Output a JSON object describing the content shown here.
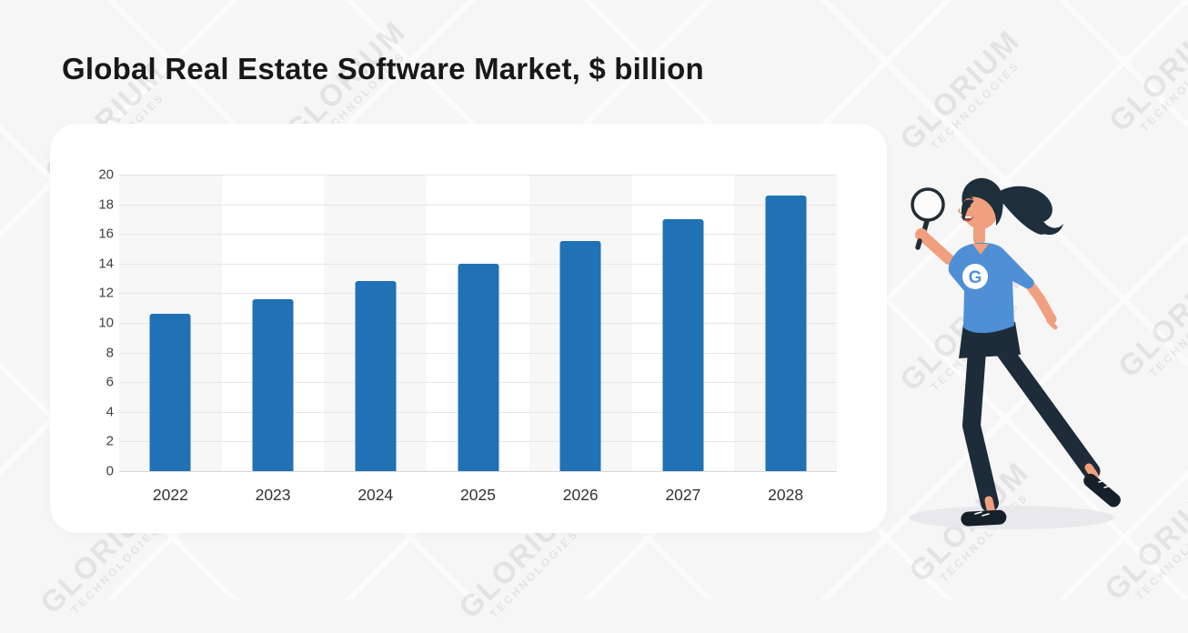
{
  "page": {
    "title": "Global Real Estate Software Market, $ billion"
  },
  "watermark": {
    "line1": "GLORIUM",
    "line2": "TECHNOLOGIES"
  },
  "chart_data": {
    "type": "bar",
    "title": "Global Real Estate Software Market, $ billion",
    "categories": [
      "2022",
      "2023",
      "2024",
      "2025",
      "2026",
      "2027",
      "2028"
    ],
    "values": [
      10.6,
      11.6,
      12.8,
      14,
      15.5,
      17,
      18.6
    ],
    "xlabel": "",
    "ylabel": "",
    "ylim": [
      0,
      20
    ],
    "yticks": [
      0,
      2,
      4,
      6,
      8,
      10,
      12,
      14,
      16,
      18,
      20
    ],
    "grid": true,
    "legend": "none",
    "bar_color": "#2171b5",
    "alternating_column_bands": true
  },
  "illustration": {
    "name": "woman-with-magnifying-glass",
    "shirt_logo_letter": "G"
  },
  "colors": {
    "background": "#f6f6f7",
    "lattice_line": "#ffffff",
    "card": "#ffffff",
    "title_text": "#17181a",
    "axis_text": "#3f4043",
    "gridline": "#e7e7e9",
    "band": "#f7f7f8",
    "bar": "#2171b5",
    "skin": "#f0a07e",
    "hair": "#1f2e3b",
    "shirt": "#4f8fd6",
    "pants": "#1d2c38",
    "shoe": "#15202a",
    "shadow": "#e9e9eb"
  }
}
